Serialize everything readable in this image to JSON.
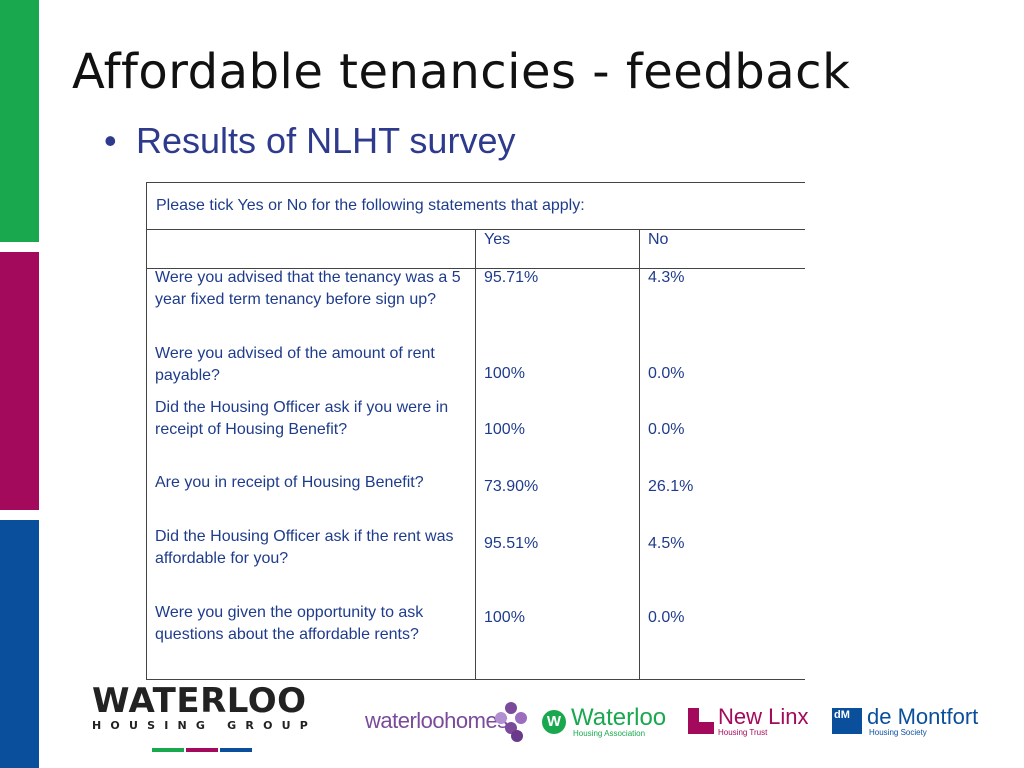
{
  "slide": {
    "title": "Affordable tenancies - feedback",
    "bullet": "Results of NLHT survey",
    "bullet_glyph": "•"
  },
  "colors": {
    "green": "#1aa84f",
    "maroon": "#a30a5b",
    "blue": "#0a4f9c",
    "table_text": "#1f3c8c",
    "bullet_text": "#2e3a8c"
  },
  "table": {
    "instruction": "Please tick Yes or No for the following statements that apply:",
    "columns": [
      "",
      "Yes",
      "No"
    ],
    "rows": [
      {
        "question": "Were you advised that the tenancy was a 5 year fixed term tenancy before sign up?",
        "yes": "95.71%",
        "no": "4.3%"
      },
      {
        "question": "Were you advised of the amount of rent payable?",
        "yes": "100%",
        "no": "0.0%"
      },
      {
        "question": "Did the Housing Officer ask if you were in receipt of Housing Benefit?",
        "yes": "100%",
        "no": "0.0%"
      },
      {
        "question": "Are you in receipt of Housing Benefit?",
        "yes": "73.90%",
        "no": "26.1%"
      },
      {
        "question": "Did the Housing Officer ask if the rent was affordable for you?",
        "yes": "95.51%",
        "no": "4.5%"
      },
      {
        "question": "Were you given the opportunity to ask questions about the affordable rents?",
        "yes": "100%",
        "no": "0.0%"
      }
    ]
  },
  "logos": {
    "waterloo_group": {
      "name": "WATERLOO",
      "sub": "HOUSING GROUP"
    },
    "waterloo_homes": {
      "name": "waterloohomes"
    },
    "waterloo_ha": {
      "mark": "W",
      "name": "Waterloo",
      "sub": "Housing Association"
    },
    "new_linx": {
      "name": "New Linx",
      "sub": "Housing Trust"
    },
    "de_montfort": {
      "mark": "dM",
      "name": "de Montfort",
      "sub": "Housing Society"
    }
  }
}
